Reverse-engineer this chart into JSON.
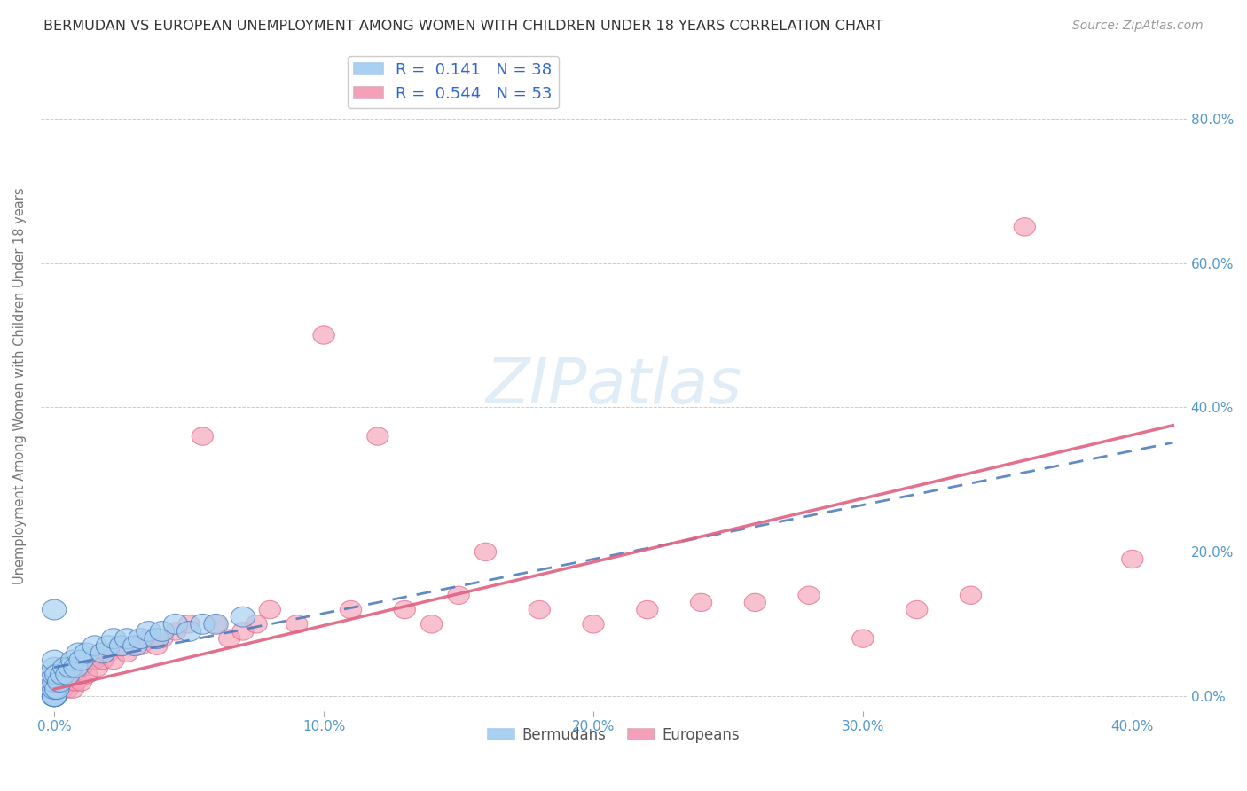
{
  "title": "BERMUDAN VS EUROPEAN UNEMPLOYMENT AMONG WOMEN WITH CHILDREN UNDER 18 YEARS CORRELATION CHART",
  "source": "Source: ZipAtlas.com",
  "ylabel": "Unemployment Among Women with Children Under 18 years",
  "xlim": [
    -0.005,
    0.42
  ],
  "ylim": [
    -0.02,
    0.88
  ],
  "bermudan_R": 0.141,
  "bermudan_N": 38,
  "european_R": 0.544,
  "european_N": 53,
  "bermudans_x": [
    0.0,
    0.0,
    0.0,
    0.0,
    0.0,
    0.0,
    0.0,
    0.0,
    0.0,
    0.0,
    0.001,
    0.001,
    0.002,
    0.003,
    0.004,
    0.005,
    0.006,
    0.007,
    0.008,
    0.009,
    0.01,
    0.012,
    0.015,
    0.018,
    0.02,
    0.022,
    0.025,
    0.027,
    0.03,
    0.032,
    0.035,
    0.038,
    0.04,
    0.045,
    0.05,
    0.055,
    0.06,
    0.07
  ],
  "bermudans_y": [
    0.0,
    0.0,
    0.0,
    0.0,
    0.01,
    0.02,
    0.03,
    0.04,
    0.05,
    0.12,
    0.01,
    0.03,
    0.02,
    0.03,
    0.04,
    0.03,
    0.04,
    0.05,
    0.04,
    0.06,
    0.05,
    0.06,
    0.07,
    0.06,
    0.07,
    0.08,
    0.07,
    0.08,
    0.07,
    0.08,
    0.09,
    0.08,
    0.09,
    0.1,
    0.09,
    0.1,
    0.1,
    0.11
  ],
  "europeans_x": [
    0.0,
    0.0,
    0.0,
    0.001,
    0.002,
    0.003,
    0.004,
    0.005,
    0.006,
    0.007,
    0.008,
    0.01,
    0.01,
    0.012,
    0.015,
    0.016,
    0.018,
    0.02,
    0.022,
    0.025,
    0.027,
    0.03,
    0.032,
    0.035,
    0.038,
    0.04,
    0.045,
    0.05,
    0.055,
    0.06,
    0.065,
    0.07,
    0.075,
    0.08,
    0.09,
    0.1,
    0.11,
    0.12,
    0.13,
    0.14,
    0.15,
    0.16,
    0.18,
    0.2,
    0.22,
    0.24,
    0.26,
    0.28,
    0.3,
    0.32,
    0.34,
    0.36,
    0.4
  ],
  "europeans_y": [
    0.0,
    0.01,
    0.02,
    0.01,
    0.02,
    0.01,
    0.02,
    0.01,
    0.02,
    0.01,
    0.02,
    0.02,
    0.04,
    0.03,
    0.05,
    0.04,
    0.05,
    0.06,
    0.05,
    0.07,
    0.06,
    0.07,
    0.07,
    0.08,
    0.07,
    0.08,
    0.09,
    0.1,
    0.36,
    0.1,
    0.08,
    0.09,
    0.1,
    0.12,
    0.1,
    0.5,
    0.12,
    0.36,
    0.12,
    0.1,
    0.14,
    0.2,
    0.12,
    0.1,
    0.12,
    0.13,
    0.13,
    0.14,
    0.08,
    0.12,
    0.14,
    0.65,
    0.19
  ],
  "bermudan_color": "#a8d0f0",
  "european_color": "#f4a0b8",
  "bermudan_line_color": "#4477bb",
  "european_line_color": "#e06080",
  "background_color": "#ffffff",
  "grid_color": "#cccccc",
  "title_color": "#333333",
  "axis_label_color": "#5599cc",
  "legend_R_color": "#3366cc",
  "bermudan_line_slope": 0.92,
  "bermudan_line_intercept": 0.015,
  "european_line_slope": 0.82,
  "european_line_intercept": 0.01
}
